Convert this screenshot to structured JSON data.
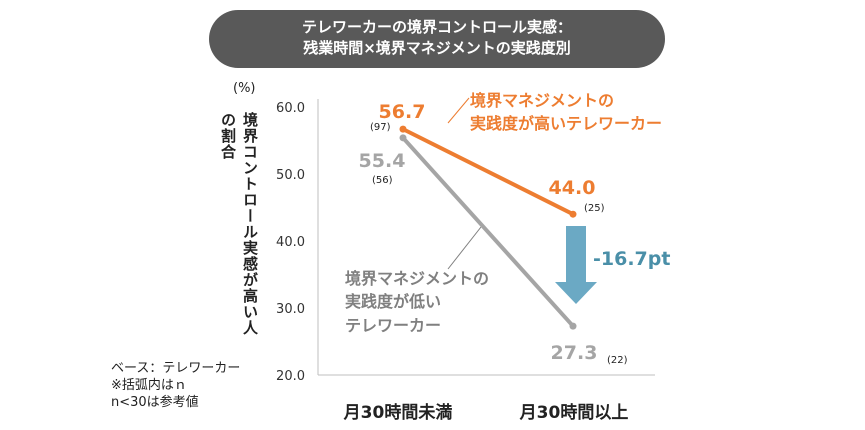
{
  "chart_data": {
    "type": "line",
    "title_lines": [
      "テレワーカーの境界コントロール実感：",
      "残業時間×境界マネジメントの実践度別"
    ],
    "unit": "(%)",
    "ylabel_lines": [
      "境界コントロール実感が高い人",
      "の割合"
    ],
    "ylim": [
      20,
      60
    ],
    "yticks": [
      "60.0",
      "50.0",
      "40.0",
      "30.0",
      "20.0"
    ],
    "categories": [
      "月30時間未満",
      "月30時間以上"
    ],
    "series": [
      {
        "name_lines": [
          "境界マネジメントの",
          "実践度が高いテレワーカー"
        ],
        "color": "#ED7D31",
        "values": [
          56.7,
          44.0
        ],
        "labels": [
          "56.7",
          "44.0"
        ],
        "n": [
          "(97)",
          "(25)"
        ]
      },
      {
        "name_lines": [
          "境界マネジメントの",
          "実践度が低い",
          "テレワーカー"
        ],
        "color": "#A5A5A5",
        "values": [
          55.4,
          27.3
        ],
        "labels": [
          "55.4",
          "27.3"
        ],
        "n": [
          "(56)",
          "(22)"
        ]
      }
    ],
    "difference": {
      "label": "-16.7pt",
      "color": "#4A8FA8",
      "arrow_color": "#6BA9C4"
    },
    "notes": [
      "ベース：テレワーカー",
      "※括弧内はｎ",
      "n<30は参考値"
    ]
  }
}
